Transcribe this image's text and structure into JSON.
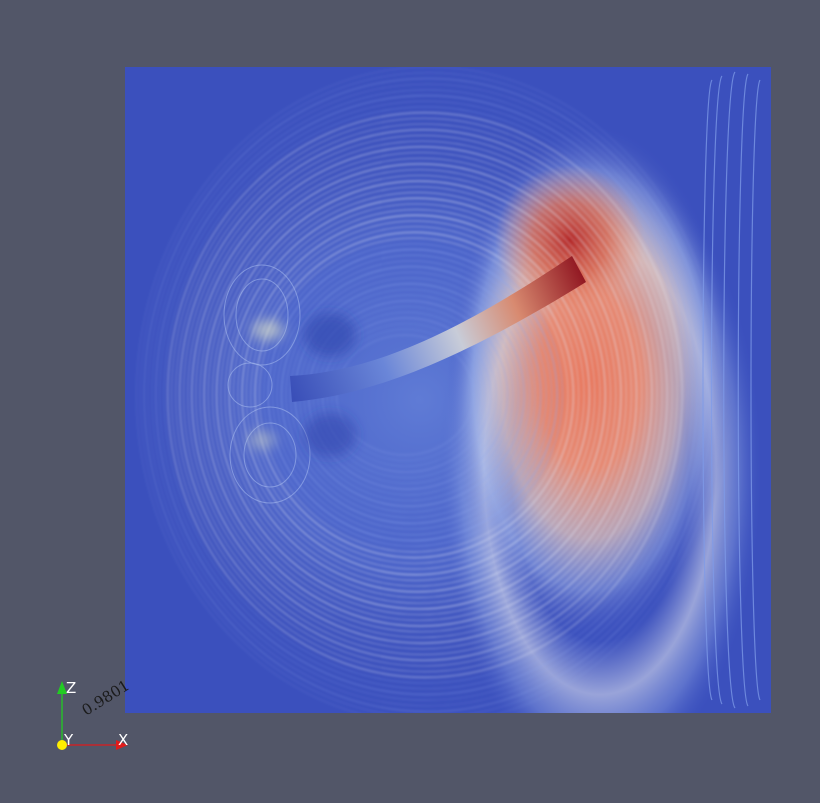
{
  "render": {
    "background_color": "#525668",
    "domain_colors": {
      "low": "#3b4cc0",
      "mid": "#dddddd",
      "high": "#b40426"
    }
  },
  "orientation_axes": {
    "x_label": "X",
    "y_label": "Y",
    "z_label": "Z",
    "x_color": "#e01b1b",
    "y_color": "#ffee00",
    "z_color": "#22cc22"
  },
  "timestamp": {
    "text": "0.9801"
  }
}
